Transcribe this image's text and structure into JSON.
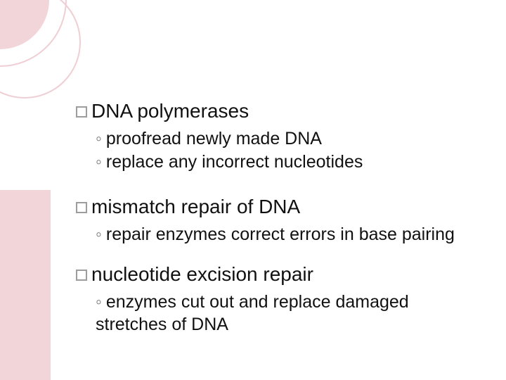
{
  "slide": {
    "colors": {
      "accent_pink": "#f1d5d9",
      "circle_stroke": "#efced4",
      "text": "#111111",
      "bullet_border": "#9d9d9d",
      "ring": "#7b7b7b",
      "background": "#ffffff"
    },
    "fonts": {
      "heading_size_pt": 21,
      "body_size_pt": 19
    },
    "sections": [
      {
        "heading": "DNA polymerases",
        "items": [
          "proofread newly made DNA",
          "replace any incorrect nucleotides"
        ]
      },
      {
        "heading": "mismatch repair of DNA",
        "items": [
          "repair enzymes correct errors in base pairing"
        ]
      },
      {
        "heading": "nucleotide excision repair",
        "items": [
          "enzymes cut out and replace damaged stretches of DNA"
        ]
      }
    ]
  }
}
